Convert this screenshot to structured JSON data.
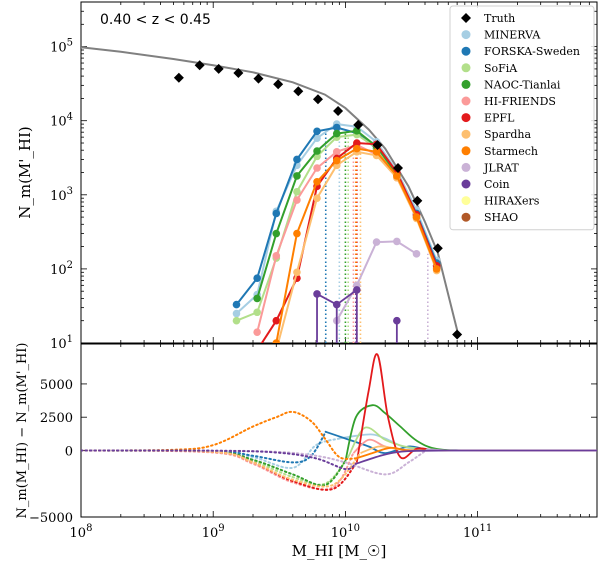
{
  "chart_data": [
    {
      "type": "line",
      "panel": "top",
      "annotation": "0.40 < z < 0.45",
      "ylabel": "N_m(M'_HI)",
      "xscale": "log",
      "yscale": "log",
      "xlim": [
        100000000.0,
        800000000000.0
      ],
      "ylim": [
        10,
        400000.0
      ],
      "x_ticks": [
        {
          "value": 100000000.0,
          "label": "10^8"
        },
        {
          "value": 1000000000.0,
          "label": "10^9"
        },
        {
          "value": 10000000000.0,
          "label": "10^10"
        },
        {
          "value": 100000000000.0,
          "label": "10^11"
        }
      ],
      "y_ticks": [
        {
          "value": 10,
          "label": "10^1"
        },
        {
          "value": 100,
          "label": "10^2"
        },
        {
          "value": 1000,
          "label": "10^3"
        },
        {
          "value": 10000,
          "label": "10^4"
        },
        {
          "value": 100000,
          "label": "10^5"
        }
      ],
      "legend_position": "top-right",
      "truth": {
        "name": "Truth",
        "color": "#000000",
        "x": [
          550000000.0,
          790000000.0,
          1100000000.0,
          1550000000.0,
          2200000000.0,
          3100000000.0,
          4400000000.0,
          6200000000.0,
          8800000000.0,
          12500000000.0,
          17500000000.0,
          25000000000.0,
          35000000000.0,
          50000000000.0,
          70000000000.0
        ],
        "y": [
          38000,
          56000,
          50000,
          44000,
          37000,
          31000,
          25000,
          19500,
          13500,
          8800,
          4700,
          2300,
          830,
          190,
          13
        ],
        "model_curve_x": [
          100000000.0,
          200000000.0,
          500000000.0,
          1000000000.0,
          2000000000.0,
          4000000000.0,
          7000000000.0,
          10000000000.0,
          15000000000.0,
          20000000000.0,
          30000000000.0,
          40000000000.0,
          50000000000.0,
          70000000000.0
        ],
        "model_curve_y": [
          98000,
          85000,
          68000,
          56000,
          45000,
          33000,
          22500,
          14800,
          7600,
          4200,
          1300,
          430,
          165,
          15
        ]
      },
      "series": [
        {
          "name": "MINERVA",
          "color": "#a6cee3",
          "x": [
            1500000000.0,
            2150000000.0,
            3000000000.0,
            4300000000.0,
            6100000000.0,
            8600000000.0,
            12200000000.0,
            17200000000.0,
            24500000000.0,
            34500000000.0,
            49000000000.0
          ],
          "y": [
            25,
            45,
            600,
            2500,
            5800,
            9000,
            8300,
            5200,
            2100,
            620,
            130
          ],
          "threshold": 9000000000.0
        },
        {
          "name": "FORSKA-Sweden",
          "color": "#1f78b4",
          "x": [
            1500000000.0,
            2150000000.0,
            3000000000.0,
            4300000000.0,
            6100000000.0,
            8600000000.0,
            12200000000.0,
            17200000000.0,
            24500000000.0,
            34500000000.0,
            49000000000.0
          ],
          "y": [
            33,
            75,
            560,
            3000,
            7200,
            8100,
            6800,
            4200,
            1900,
            560,
            120
          ],
          "threshold": 7100000000.0
        },
        {
          "name": "SoFiA",
          "color": "#b2df8a",
          "x": [
            1500000000.0,
            2150000000.0,
            3000000000.0,
            4300000000.0,
            6100000000.0,
            8600000000.0,
            12200000000.0,
            17200000000.0,
            24500000000.0,
            34500000000.0,
            49000000000.0
          ],
          "y": [
            20,
            26,
            140,
            1100,
            3300,
            6000,
            6500,
            4300,
            1800,
            500,
            100
          ],
          "threshold": 10500000000.0
        },
        {
          "name": "NAOC-Tianlai",
          "color": "#33a02c",
          "x": [
            2150000000.0,
            3000000000.0,
            4300000000.0,
            6100000000.0,
            8600000000.0,
            12200000000.0,
            17200000000.0,
            24500000000.0,
            34500000000.0,
            49000000000.0
          ],
          "y": [
            40,
            300,
            1800,
            3900,
            6700,
            7300,
            4500,
            1900,
            530,
            110
          ],
          "threshold": 10000000000.0
        },
        {
          "name": "HI-FRIENDS",
          "color": "#fb9a99",
          "x": [
            2150000000.0,
            3000000000.0,
            4300000000.0,
            6100000000.0,
            8600000000.0,
            12200000000.0,
            17200000000.0,
            24500000000.0,
            34500000000.0,
            49000000000.0
          ],
          "y": [
            14,
            150,
            850,
            2300,
            3800,
            4700,
            3500,
            1700,
            520,
            105
          ],
          "threshold": 11500000000.0
        },
        {
          "name": "EPFL",
          "color": "#e31a1c",
          "x": [
            2150000000.0,
            3000000000.0,
            4300000000.0,
            6100000000.0,
            8600000000.0,
            12200000000.0,
            17200000000.0,
            24500000000.0,
            34500000000.0,
            49000000000.0
          ],
          "y": [
            8,
            20,
            75,
            1300,
            3100,
            5000,
            4800,
            2000,
            540,
            110
          ],
          "threshold": 12200000000.0
        },
        {
          "name": "Spardha",
          "color": "#fdbf6f",
          "x": [
            3000000000.0,
            4300000000.0,
            6100000000.0,
            8600000000.0,
            12200000000.0,
            17200000000.0,
            24500000000.0,
            34500000000.0,
            49000000000.0
          ],
          "y": [
            8,
            90,
            900,
            2500,
            3800,
            3400,
            1700,
            480,
            95
          ],
          "threshold": 13000000000.0
        },
        {
          "name": "Starmech",
          "color": "#ff7f00",
          "x": [
            3000000000.0,
            4300000000.0,
            6100000000.0,
            8600000000.0,
            12200000000.0,
            17200000000.0,
            24500000000.0,
            34500000000.0,
            49000000000.0
          ],
          "y": [
            10,
            300,
            1500,
            2900,
            4200,
            3800,
            1800,
            500,
            100
          ],
          "threshold": 12000000000.0
        },
        {
          "name": "JLRAT",
          "color": "#cab2d6",
          "x": [
            8600000000.0,
            12200000000.0,
            17200000000.0,
            24500000000.0,
            34500000000.0
          ],
          "y": [
            20,
            60,
            230,
            235,
            160
          ],
          "threshold": 42000000000.0
        },
        {
          "name": "Coin",
          "color": "#6a3d9a",
          "x": [
            6100000000.0,
            8600000000.0,
            12200000000.0
          ],
          "y": [
            46,
            33,
            52
          ],
          "threshold": 12000000000.0
        },
        {
          "name": "HIRAXers",
          "color": "#ffff99",
          "x": [],
          "y": [],
          "threshold": null
        },
        {
          "name": "SHAO",
          "color": "#b15928",
          "x": [],
          "y": [],
          "threshold": null
        }
      ]
    },
    {
      "type": "line",
      "panel": "bottom",
      "xlabel": "M_HI [M_☉]",
      "ylabel": "N_m(M_HI) − N_m(M'_HI)",
      "xscale": "log",
      "xlim": [
        100000000.0,
        800000000000.0
      ],
      "ylim": [
        -5000,
        8000
      ],
      "x_ticks": [
        {
          "value": 100000000.0,
          "label": "10^8"
        },
        {
          "value": 1000000000.0,
          "label": "10^9"
        },
        {
          "value": 10000000000.0,
          "label": "10^10"
        },
        {
          "value": 100000000000.0,
          "label": "10^11"
        }
      ],
      "y_ticks": [
        {
          "value": -5000,
          "label": "−5000"
        },
        {
          "value": 0,
          "label": "0"
        },
        {
          "value": 2500,
          "label": "2500"
        },
        {
          "value": 5000,
          "label": "5000"
        }
      ],
      "series": [
        {
          "name": "MINERVA",
          "color": "#a6cee3",
          "threshold": 9000000000.0,
          "x": [
            100000000.0,
            1000000000.0,
            2000000000.0,
            4000000000.0,
            6000000000.0,
            9000000000.0,
            12000000000.0,
            16000000000.0,
            20000000000.0,
            28000000000.0,
            40000000000.0,
            60000000000.0,
            100000000000.0,
            800000000000.0
          ],
          "y": [
            0,
            -50,
            -500,
            -1300,
            400,
            900,
            1100,
            1200,
            900,
            250,
            80,
            0,
            0,
            0
          ]
        },
        {
          "name": "FORSKA-Sweden",
          "color": "#1f78b4",
          "threshold": 7100000000.0,
          "x": [
            100000000.0,
            1000000000.0,
            2000000000.0,
            4000000000.0,
            5500000000.0,
            7100000000.0,
            10000000000.0,
            15000000000.0,
            20000000000.0,
            30000000000.0,
            40000000000.0,
            60000000000.0,
            100000000000.0,
            800000000000.0
          ],
          "y": [
            0,
            -40,
            -400,
            -900,
            -400,
            1400,
            900,
            300,
            -200,
            300,
            100,
            0,
            0,
            0
          ]
        },
        {
          "name": "SoFiA",
          "color": "#b2df8a",
          "threshold": 10500000000.0,
          "x": [
            100000000.0,
            1000000000.0,
            2000000000.0,
            4000000000.0,
            7000000000.0,
            10500000000.0,
            14000000000.0,
            20000000000.0,
            28000000000.0,
            40000000000.0,
            60000000000.0,
            100000000000.0,
            800000000000.0
          ],
          "y": [
            0,
            -100,
            -800,
            -2000,
            -2500,
            -500,
            1700,
            800,
            300,
            100,
            0,
            0,
            0
          ]
        },
        {
          "name": "NAOC-Tianlai",
          "color": "#33a02c",
          "threshold": 10000000000.0,
          "x": [
            100000000.0,
            1000000000.0,
            2000000000.0,
            4000000000.0,
            7000000000.0,
            10000000000.0,
            12000000000.0,
            16000000000.0,
            20000000000.0,
            26000000000.0,
            35000000000.0,
            50000000000.0,
            100000000000.0,
            800000000000.0
          ],
          "y": [
            0,
            -100,
            -700,
            -1800,
            -2600,
            -800,
            2500,
            3400,
            2800,
            1800,
            700,
            100,
            0,
            0
          ]
        },
        {
          "name": "HI-FRIENDS",
          "color": "#fb9a99",
          "threshold": 11500000000.0,
          "x": [
            100000000.0,
            1000000000.0,
            2000000000.0,
            4000000000.0,
            8000000000.0,
            11500000000.0,
            15000000000.0,
            20000000000.0,
            28000000000.0,
            40000000000.0,
            60000000000.0,
            100000000000.0,
            800000000000.0
          ],
          "y": [
            0,
            -150,
            -1000,
            -2400,
            -2800,
            -200,
            800,
            300,
            50,
            0,
            0,
            0,
            0
          ]
        },
        {
          "name": "EPFL",
          "color": "#e31a1c",
          "threshold": 12200000000.0,
          "x": [
            100000000.0,
            1000000000.0,
            2000000000.0,
            4000000000.0,
            8000000000.0,
            12200000000.0,
            15000000000.0,
            17500000000.0,
            21000000000.0,
            26000000000.0,
            35000000000.0,
            50000000000.0,
            100000000000.0,
            800000000000.0
          ],
          "y": [
            0,
            -100,
            -900,
            -2300,
            -2900,
            -900,
            4500,
            7200,
            2500,
            -500,
            150,
            0,
            0,
            0
          ]
        },
        {
          "name": "Spardha",
          "color": "#fdbf6f",
          "threshold": 13000000000.0,
          "x": [
            100000000.0,
            1000000000.0,
            2000000000.0,
            4000000000.0,
            8000000000.0,
            13000000000.0,
            18000000000.0,
            25000000000.0,
            35000000000.0,
            50000000000.0,
            100000000000.0,
            800000000000.0
          ],
          "y": [
            0,
            -100,
            -900,
            -2200,
            -2600,
            -200,
            300,
            100,
            0,
            0,
            0,
            0
          ]
        },
        {
          "name": "Starmech",
          "color": "#ff7f00",
          "threshold": 12000000000.0,
          "x": [
            100000000.0,
            500000000.0,
            1000000000.0,
            2000000000.0,
            3000000000.0,
            4000000000.0,
            5500000000.0,
            7000000000.0,
            9000000000.0,
            12000000000.0,
            16000000000.0,
            22000000000.0,
            30000000000.0,
            50000000000.0,
            100000000000.0,
            800000000000.0
          ],
          "y": [
            0,
            50,
            400,
            1800,
            2500,
            2900,
            2200,
            900,
            -500,
            -600,
            -200,
            200,
            0,
            0,
            0,
            0
          ]
        },
        {
          "name": "JLRAT",
          "color": "#cab2d6",
          "threshold": 42000000000.0,
          "x": [
            100000000.0,
            1000000000.0,
            3000000000.0,
            6000000000.0,
            10000000000.0,
            20000000000.0,
            30000000000.0,
            42000000000.0,
            60000000000.0,
            100000000000.0,
            800000000000.0
          ],
          "y": [
            0,
            -20,
            -100,
            -400,
            -900,
            -1800,
            -900,
            100,
            0,
            0,
            0
          ]
        },
        {
          "name": "Coin",
          "color": "#6a3d9a",
          "threshold": 12000000000.0,
          "x": [
            100000000.0,
            1000000000.0,
            3000000000.0,
            6000000000.0,
            10000000000.0,
            12000000000.0,
            20000000000.0,
            30000000000.0,
            60000000000.0,
            100000000000.0,
            800000000000.0
          ],
          "y": [
            0,
            -20,
            -150,
            -600,
            -1400,
            -1000,
            -300,
            -50,
            0,
            0,
            0
          ]
        },
        {
          "name": "HIRAXers",
          "color": "#ffff99",
          "threshold": null,
          "x": [],
          "y": []
        },
        {
          "name": "SHAO",
          "color": "#b15928",
          "threshold": null,
          "x": [],
          "y": []
        }
      ]
    }
  ]
}
